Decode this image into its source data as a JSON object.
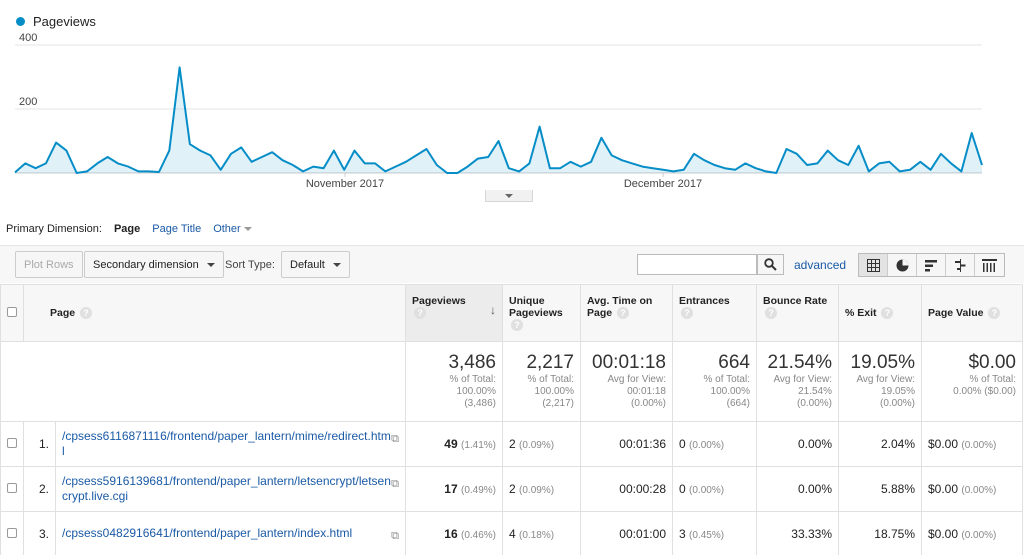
{
  "chart": {
    "legend": "Pageviews",
    "color": "#058dc7",
    "y_tick_labels": [
      "400",
      "200"
    ],
    "x_tick_labels": [
      "November 2017",
      "December 2017"
    ]
  },
  "chart_data": {
    "type": "area",
    "series": [
      {
        "name": "Pageviews",
        "values": [
          2,
          30,
          15,
          30,
          95,
          70,
          0,
          5,
          30,
          50,
          30,
          20,
          5,
          5,
          3,
          70,
          330,
          90,
          70,
          55,
          10,
          60,
          80,
          35,
          50,
          65,
          40,
          25,
          5,
          20,
          15,
          70,
          10,
          70,
          30,
          30,
          5,
          20,
          35,
          55,
          75,
          25,
          0,
          0,
          20,
          45,
          50,
          100,
          15,
          5,
          30,
          145,
          15,
          15,
          35,
          20,
          35,
          110,
          55,
          40,
          30,
          20,
          15,
          10,
          5,
          10,
          60,
          40,
          25,
          15,
          10,
          30,
          15,
          5,
          0,
          75,
          60,
          25,
          30,
          70,
          40,
          25,
          85,
          5,
          30,
          35,
          5,
          10,
          35,
          10,
          60,
          30,
          5,
          125,
          25
        ]
      }
    ],
    "ylim": [
      0,
      400
    ],
    "grid": true
  },
  "primary_dimension": {
    "label": "Primary Dimension:",
    "active": "Page",
    "page_title": "Page Title",
    "other": "Other"
  },
  "toolbar": {
    "plot_rows": "Plot Rows",
    "secondary_dimension": "Secondary dimension",
    "sort_type_label": "Sort Type:",
    "sort_type_value": "Default",
    "search_placeholder": "",
    "advanced": "advanced"
  },
  "table": {
    "headers": {
      "page": "Page",
      "pageviews": "Pageviews",
      "unique_pageviews": "Unique Pageviews",
      "avg_time": "Avg. Time on Page",
      "entrances": "Entrances",
      "bounce_rate": "Bounce Rate",
      "exit": "% Exit",
      "page_value": "Page Value"
    },
    "totals": {
      "pageviews": {
        "value": "3,486",
        "l1": "% of Total:",
        "l2": "100.00%",
        "l3": "(3,486)"
      },
      "unique": {
        "value": "2,217",
        "l1": "% of Total:",
        "l2": "100.00%",
        "l3": "(2,217)"
      },
      "avg_time": {
        "value": "00:01:18",
        "l1": "Avg for View:",
        "l2": "00:01:18",
        "l3": "(0.00%)"
      },
      "entrances": {
        "value": "664",
        "l1": "% of Total:",
        "l2": "100.00%",
        "l3": "(664)"
      },
      "bounce": {
        "value": "21.54%",
        "l1": "Avg for View:",
        "l2": "21.54%",
        "l3": "(0.00%)"
      },
      "exit": {
        "value": "19.05%",
        "l1": "Avg for View:",
        "l2": "19.05%",
        "l3": "(0.00%)"
      },
      "value": {
        "value": "$0.00",
        "l1": "% of Total:",
        "l2": "0.00% ($0.00)"
      }
    },
    "rows": [
      {
        "num": "1.",
        "page": "/cpsess6116871116/frontend/paper_lantern/mime/redirect.html",
        "pv": "49",
        "pv_pct": "(1.41%)",
        "upv": "2",
        "upv_pct": "(0.09%)",
        "time": "00:01:36",
        "ent": "0",
        "ent_pct": "(0.00%)",
        "bounce": "0.00%",
        "exit": "2.04%",
        "val": "$0.00",
        "val_pct": "(0.00%)"
      },
      {
        "num": "2.",
        "page": "/cpsess5916139681/frontend/paper_lantern/letsencrypt/letsencrypt.live.cgi",
        "pv": "17",
        "pv_pct": "(0.49%)",
        "upv": "2",
        "upv_pct": "(0.09%)",
        "time": "00:00:28",
        "ent": "0",
        "ent_pct": "(0.00%)",
        "bounce": "0.00%",
        "exit": "5.88%",
        "val": "$0.00",
        "val_pct": "(0.00%)"
      },
      {
        "num": "3.",
        "page": "/cpsess0482916641/frontend/paper_lantern/index.html",
        "pv": "16",
        "pv_pct": "(0.46%)",
        "upv": "4",
        "upv_pct": "(0.18%)",
        "time": "00:01:00",
        "ent": "3",
        "ent_pct": "(0.45%)",
        "bounce": "33.33%",
        "exit": "18.75%",
        "val": "$0.00",
        "val_pct": "(0.00%)"
      }
    ]
  }
}
